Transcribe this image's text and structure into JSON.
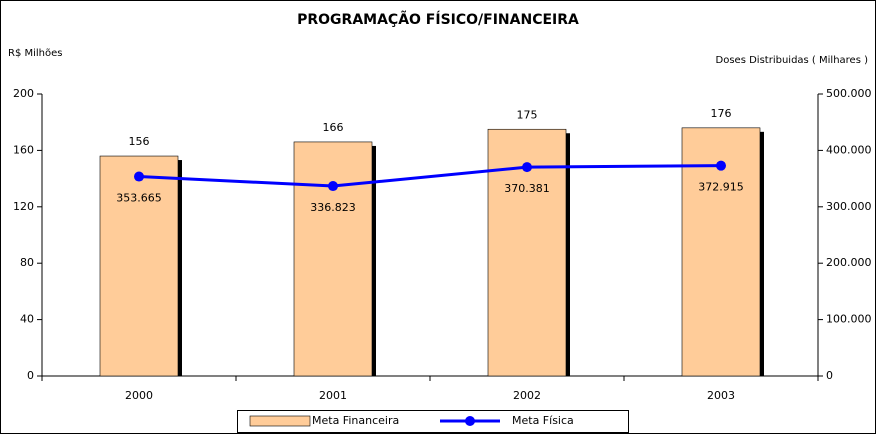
{
  "chart_data": {
    "type": "bar",
    "title": "PROGRAMAÇÃO FÍSICO/FINANCEIRA",
    "y_label": "R$ Milhões",
    "y2_label": "Doses Distribuidas ( Milhares )",
    "categories": [
      "2000",
      "2001",
      "2002",
      "2003"
    ],
    "series": [
      {
        "name": "Meta Financeira",
        "type": "bar",
        "color": "#ffcc99",
        "values": [
          156,
          166,
          175,
          176
        ]
      },
      {
        "name": "Meta Física",
        "type": "line",
        "axis": "y2",
        "color": "#0000ff",
        "values": [
          353665,
          336823,
          370381,
          372915
        ],
        "value_labels": [
          "353.665",
          "336.823",
          "370.381",
          "372.915"
        ]
      }
    ],
    "ylim": [
      0,
      200
    ],
    "yticks": [
      0,
      40,
      80,
      120,
      160,
      200
    ],
    "y2lim": [
      0,
      500000
    ],
    "y2ticks": [
      0,
      {
        "value": 100000,
        "label": "100.000"
      },
      {
        "value": 200000,
        "label": "200.000"
      },
      {
        "value": 300000,
        "label": "300.000"
      },
      {
        "value": 400000,
        "label": "400.000"
      },
      {
        "value": 500000,
        "label": "500.000"
      }
    ],
    "legend": "bottom"
  }
}
